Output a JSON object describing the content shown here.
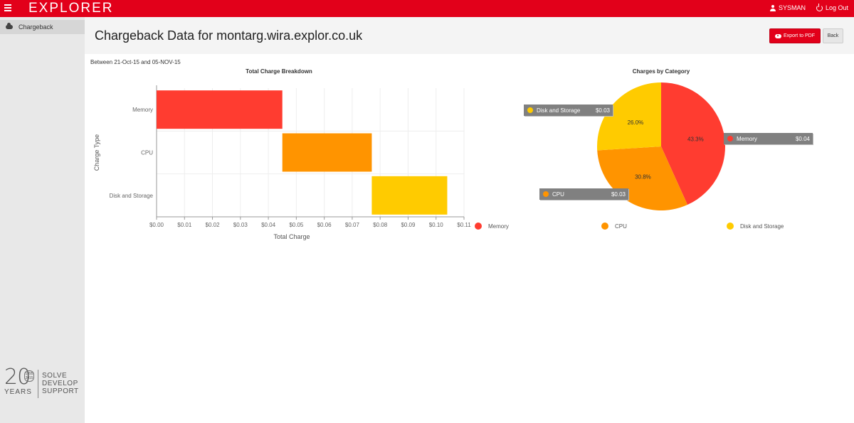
{
  "topbar": {
    "logo": "EXPLORER",
    "user": "SYSMAN",
    "logout": "Log Out"
  },
  "sidebar": {
    "items": [
      {
        "label": "Chargeback"
      }
    ],
    "anniversary": {
      "number": "20",
      "years_range": [
        "1995",
        "2015"
      ],
      "years_word": "YEARS",
      "motto": [
        "SOLVE",
        "DEVELOP",
        "SUPPORT"
      ]
    }
  },
  "header": {
    "title": "Chargeback Data for montarg.wira.explor.co.uk",
    "export_label": "Export to PDF",
    "back_label": "Back"
  },
  "daterange": "Between 21-Oct-15 and 05-NOV-15",
  "colors": {
    "memory": "#ff3c30",
    "cpu": "#ff9400",
    "disk": "#ffcb00",
    "accent": "#e2001a"
  },
  "chart_data": [
    {
      "type": "bar",
      "orientation": "horizontal-stacked-waterfall",
      "title": "Total Charge Breakdown",
      "xlabel": "Total Charge",
      "ylabel": "Charge Type",
      "categories": [
        "Memory",
        "CPU",
        "Disk and Storage"
      ],
      "ranges": [
        [
          0.0,
          0.045
        ],
        [
          0.045,
          0.077
        ],
        [
          0.077,
          0.104
        ]
      ],
      "values": [
        0.045,
        0.032,
        0.027
      ],
      "xticks": [
        "$0.00",
        "$0.01",
        "$0.02",
        "$0.03",
        "$0.04",
        "$0.05",
        "$0.06",
        "$0.07",
        "$0.08",
        "$0.09",
        "$0.10",
        "$0.11"
      ],
      "xlim": [
        0,
        0.11
      ],
      "grid": true
    },
    {
      "type": "pie",
      "title": "Charges by Category",
      "slices": [
        {
          "name": "Memory",
          "percent": 43.3,
          "percent_label": "43.3%",
          "value_label": "$0.04"
        },
        {
          "name": "CPU",
          "percent": 30.8,
          "percent_label": "30.8%",
          "value_label": "$0.03"
        },
        {
          "name": "Disk and Storage",
          "percent": 26.0,
          "percent_label": "26.0%",
          "value_label": "$0.03"
        }
      ],
      "legend": [
        "Memory",
        "CPU",
        "Disk and Storage"
      ],
      "legend_position": "bottom"
    }
  ]
}
